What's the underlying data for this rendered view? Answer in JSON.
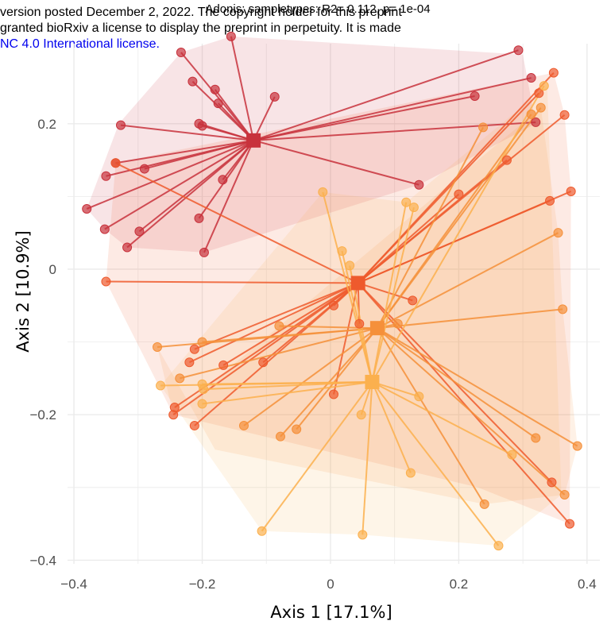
{
  "watermark": {
    "line1": "version posted December 2, 2022. The copyright holder for this preprint",
    "line2": "granted bioRxiv a license to display the preprint in perpetuity. It is made",
    "line3": "NC 4.0 International license."
  },
  "colors": {
    "red": "#c8323c",
    "orange": "#ee5a2d",
    "amber": "#f5903a",
    "light": "#fbb04e",
    "grid": "#ebebeb"
  },
  "chart_data": {
    "type": "scatter",
    "title": "",
    "subtitle": "Adonis: sampletypes: R2= 0.112, p= 1e-04",
    "xlabel": "Axis 1 [17.1%]",
    "ylabel": "Axis 2 [10.9%]",
    "xlim": [
      -0.41,
      0.42
    ],
    "ylim": [
      -0.405,
      0.31
    ],
    "xticks": [
      -0.4,
      -0.2,
      0,
      0.2,
      0.4
    ],
    "xtick_labels": [
      "−0.4",
      "−0.2",
      "0",
      "0.2",
      "0.4"
    ],
    "yticks": [
      -0.4,
      -0.2,
      0,
      0.2
    ],
    "ytick_labels": [
      "−0.4",
      "−0.2",
      "0",
      "0.2"
    ],
    "grid": true,
    "legend": "none",
    "series": [
      {
        "color": "#c8323c",
        "centroid": [
          -0.12,
          0.177
        ],
        "hull": [
          [
            -0.155,
            0.32
          ],
          [
            -0.233,
            0.298
          ],
          [
            -0.33,
            0.2
          ],
          [
            -0.38,
            0.083
          ],
          [
            -0.352,
            0.055
          ],
          [
            -0.317,
            0.03
          ],
          [
            -0.197,
            0.023
          ],
          [
            0.138,
            0.116
          ],
          [
            0.32,
            0.2
          ],
          [
            0.3,
            0.295
          ],
          [
            -0.155,
            0.32
          ]
        ],
        "points": [
          [
            -0.155,
            0.32
          ],
          [
            -0.233,
            0.298
          ],
          [
            -0.215,
            0.258
          ],
          [
            -0.18,
            0.247
          ],
          [
            -0.175,
            0.228
          ],
          [
            -0.087,
            0.237
          ],
          [
            -0.205,
            0.2
          ],
          [
            -0.2,
            0.197
          ],
          [
            -0.327,
            0.198
          ],
          [
            -0.335,
            0.146
          ],
          [
            -0.29,
            0.138
          ],
          [
            -0.35,
            0.128
          ],
          [
            -0.38,
            0.083
          ],
          [
            -0.352,
            0.055
          ],
          [
            -0.298,
            0.052
          ],
          [
            -0.317,
            0.03
          ],
          [
            -0.205,
            0.07
          ],
          [
            -0.197,
            0.023
          ],
          [
            -0.168,
            0.123
          ],
          [
            0.138,
            0.116
          ],
          [
            0.293,
            0.301
          ],
          [
            0.313,
            0.263
          ],
          [
            0.225,
            0.238
          ],
          [
            0.32,
            0.202
          ]
        ]
      },
      {
        "color": "#ee5a2d",
        "centroid": [
          0.043,
          -0.019
        ],
        "hull": [
          [
            0.348,
            0.27
          ],
          [
            0.365,
            0.212
          ],
          [
            0.375,
            0.107
          ],
          [
            0.373,
            -0.35
          ],
          [
            0.23,
            -0.3
          ],
          [
            -0.245,
            -0.2
          ],
          [
            -0.35,
            -0.017
          ],
          [
            -0.335,
            0.146
          ],
          [
            0.348,
            0.27
          ]
        ],
        "points": [
          [
            0.348,
            0.27
          ],
          [
            0.325,
            0.242
          ],
          [
            0.365,
            0.212
          ],
          [
            0.275,
            0.15
          ],
          [
            0.2,
            0.103
          ],
          [
            0.375,
            0.107
          ],
          [
            0.342,
            0.094
          ],
          [
            -0.35,
            -0.017
          ],
          [
            0.005,
            -0.05
          ],
          [
            -0.335,
            0.146
          ],
          [
            0.128,
            -0.043
          ],
          [
            -0.212,
            -0.11
          ],
          [
            -0.22,
            -0.128
          ],
          [
            -0.167,
            -0.132
          ],
          [
            -0.105,
            -0.128
          ],
          [
            -0.243,
            -0.19
          ],
          [
            -0.245,
            -0.2
          ],
          [
            -0.212,
            -0.215
          ],
          [
            0.005,
            -0.172
          ],
          [
            0.045,
            -0.075
          ],
          [
            0.373,
            -0.35
          ],
          [
            0.345,
            -0.293
          ]
        ]
      },
      {
        "color": "#f5903a",
        "centroid": [
          0.073,
          -0.081
        ],
        "hull": [
          [
            0.355,
            0.05
          ],
          [
            0.362,
            -0.055
          ],
          [
            0.385,
            -0.243
          ],
          [
            0.365,
            -0.31
          ],
          [
            0.24,
            -0.323
          ],
          [
            -0.18,
            -0.248
          ],
          [
            -0.27,
            -0.107
          ],
          [
            -0.245,
            -0.2
          ],
          [
            0.328,
            0.222
          ],
          [
            0.355,
            0.05
          ]
        ],
        "points": [
          [
            0.328,
            0.222
          ],
          [
            0.313,
            0.213
          ],
          [
            0.238,
            0.195
          ],
          [
            0.355,
            0.05
          ],
          [
            0.362,
            -0.055
          ],
          [
            0.385,
            -0.243
          ],
          [
            0.32,
            -0.232
          ],
          [
            0.365,
            -0.31
          ],
          [
            0.24,
            -0.323
          ],
          [
            -0.27,
            -0.107
          ],
          [
            -0.2,
            -0.1
          ],
          [
            -0.08,
            -0.078
          ],
          [
            0.105,
            -0.075
          ],
          [
            -0.235,
            -0.15
          ],
          [
            -0.053,
            -0.22
          ],
          [
            -0.078,
            -0.23
          ],
          [
            -0.135,
            -0.215
          ]
        ]
      },
      {
        "color": "#fbb04e",
        "centroid": [
          0.065,
          -0.155
        ],
        "hull": [
          [
            -0.012,
            0.106
          ],
          [
            0.118,
            0.092
          ],
          [
            0.338,
            0.252
          ],
          [
            0.36,
            -0.31
          ],
          [
            0.262,
            -0.38
          ],
          [
            0.05,
            -0.365
          ],
          [
            -0.107,
            -0.36
          ],
          [
            -0.265,
            -0.16
          ],
          [
            -0.012,
            0.106
          ]
        ],
        "points": [
          [
            -0.012,
            0.106
          ],
          [
            0.118,
            0.092
          ],
          [
            0.13,
            0.085
          ],
          [
            0.333,
            0.252
          ],
          [
            0.018,
            0.025
          ],
          [
            0.03,
            0.005
          ],
          [
            -0.265,
            -0.16
          ],
          [
            -0.2,
            -0.158
          ],
          [
            -0.198,
            -0.165
          ],
          [
            -0.2,
            -0.185
          ],
          [
            0.138,
            -0.175
          ],
          [
            0.048,
            -0.2
          ],
          [
            0.125,
            -0.28
          ],
          [
            0.283,
            -0.255
          ],
          [
            0.262,
            -0.38
          ],
          [
            0.05,
            -0.365
          ],
          [
            -0.107,
            -0.36
          ]
        ]
      }
    ]
  }
}
